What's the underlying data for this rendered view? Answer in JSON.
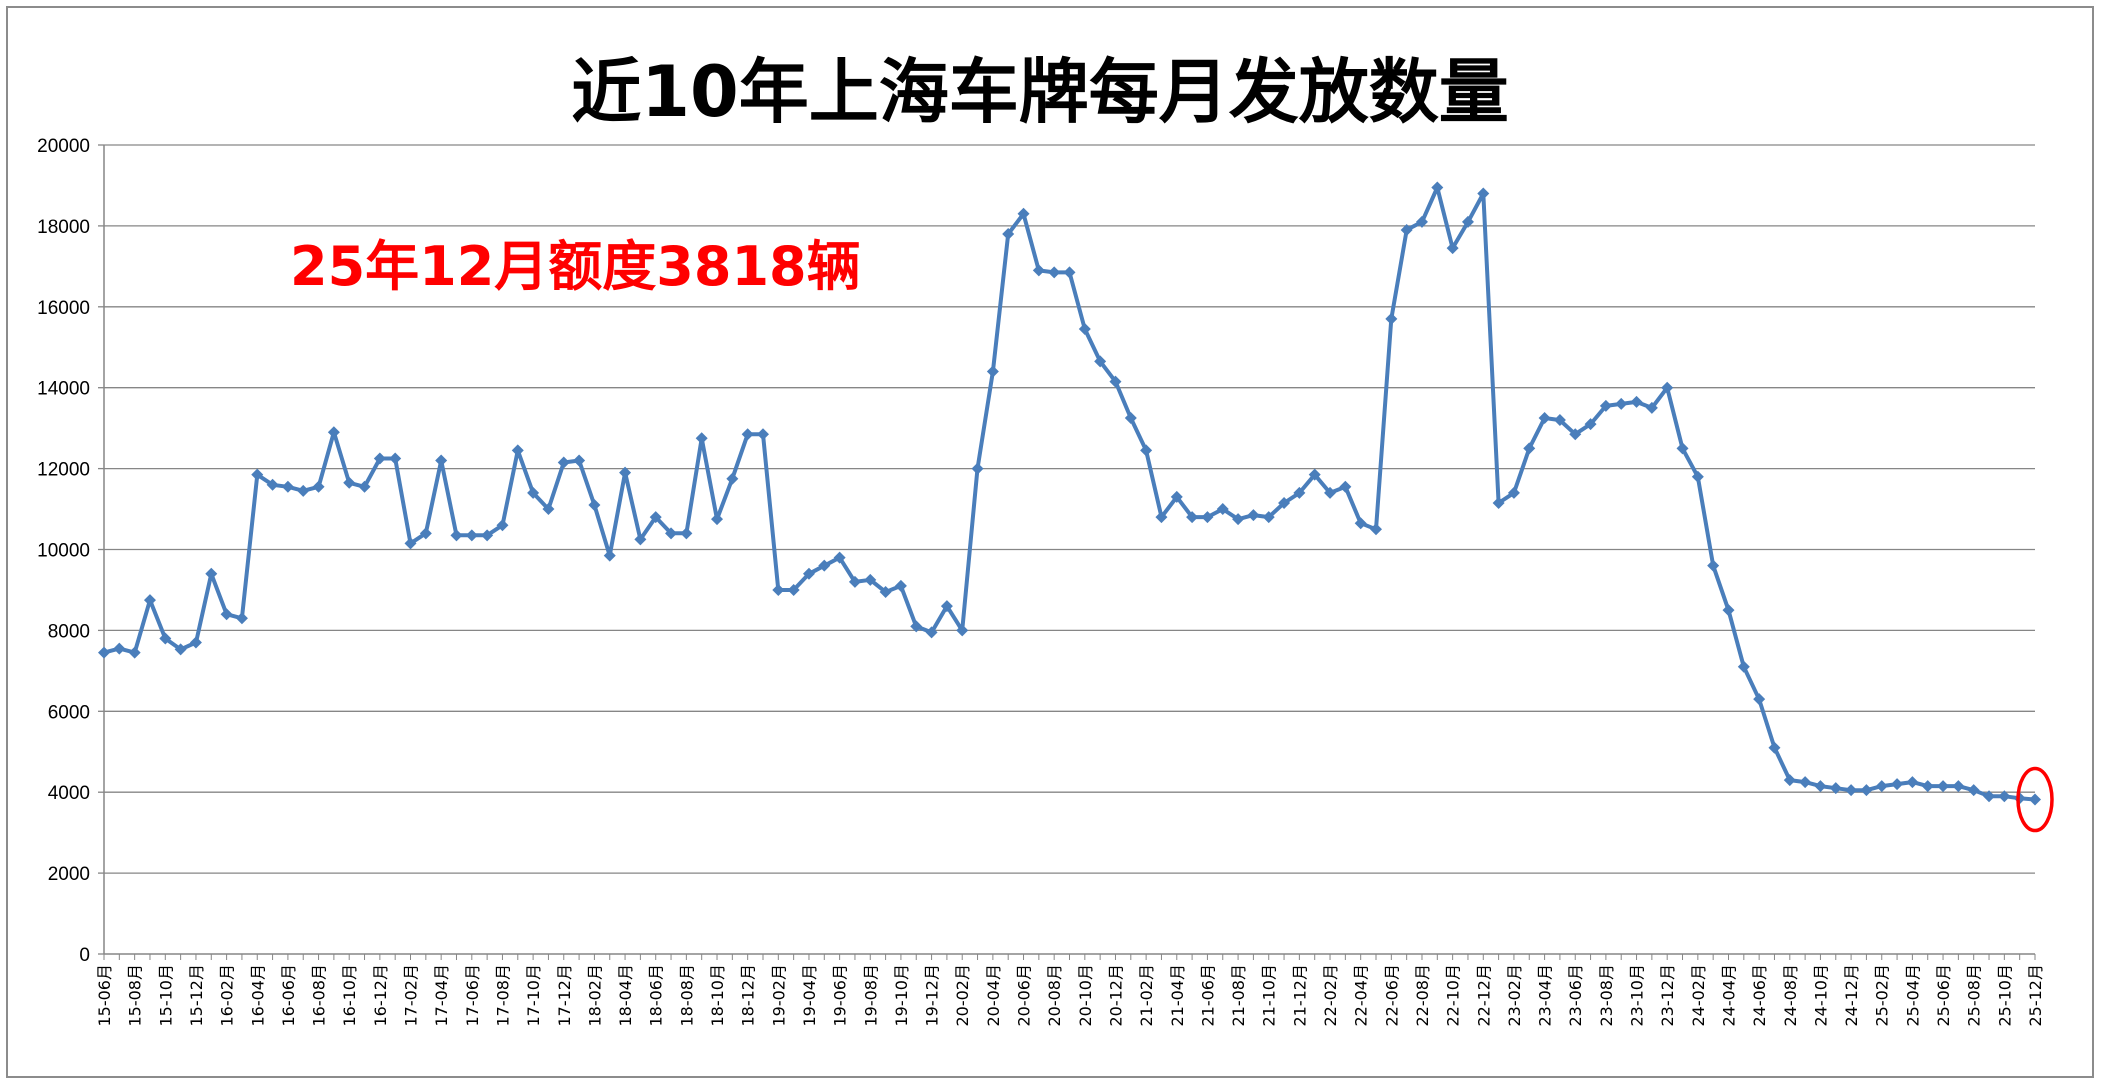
{
  "chart_data": {
    "type": "line",
    "title": "近10年上海车牌每月发放数量",
    "annotation": "25年12月额度3818辆",
    "xlabel": "",
    "ylabel": "",
    "ylim": [
      0,
      20000
    ],
    "yticks": [
      0,
      2000,
      4000,
      6000,
      8000,
      10000,
      12000,
      14000,
      16000,
      18000,
      20000
    ],
    "grid": true,
    "legend": "none",
    "highlight_last_point": true,
    "colors": {
      "line": "#4a7ebb",
      "annotation": "#ff0000",
      "grid": "#868686",
      "highlight_circle": "#ff0000"
    },
    "categories": [
      "15-06月",
      "15-07月",
      "15-08月",
      "15-09月",
      "15-10月",
      "15-11月",
      "15-12月",
      "16-01月",
      "16-02月",
      "16-03月",
      "16-04月",
      "16-05月",
      "16-06月",
      "16-07月",
      "16-08月",
      "16-09月",
      "16-10月",
      "16-11月",
      "16-12月",
      "17-01月",
      "17-02月",
      "17-03月",
      "17-04月",
      "17-05月",
      "17-06月",
      "17-07月",
      "17-08月",
      "17-09月",
      "17-10月",
      "17-11月",
      "17-12月",
      "18-01月",
      "18-02月",
      "18-03月",
      "18-04月",
      "18-05月",
      "18-06月",
      "18-07月",
      "18-08月",
      "18-09月",
      "18-10月",
      "18-11月",
      "18-12月",
      "19-01月",
      "19-02月",
      "19-03月",
      "19-04月",
      "19-05月",
      "19-06月",
      "19-07月",
      "19-08月",
      "19-09月",
      "19-10月",
      "19-11月",
      "19-12月",
      "20-01月",
      "20-02月",
      "20-03月",
      "20-04月",
      "20-05月",
      "20-06月",
      "20-07月",
      "20-08月",
      "20-09月",
      "20-10月",
      "20-11月",
      "20-12月",
      "21-01月",
      "21-02月",
      "21-03月",
      "21-04月",
      "21-05月",
      "21-06月",
      "21-07月",
      "21-08月",
      "21-09月",
      "21-10月",
      "21-11月",
      "21-12月",
      "22-01月",
      "22-02月",
      "22-03月",
      "22-04月",
      "22-05月",
      "22-06月",
      "22-07月",
      "22-08月",
      "22-09月",
      "22-10月",
      "22-11月",
      "22-12月",
      "23-01月",
      "23-02月",
      "23-03月",
      "23-04月",
      "23-05月",
      "23-06月",
      "23-07月",
      "23-08月",
      "23-09月",
      "23-10月",
      "23-11月",
      "23-12月",
      "24-01月",
      "24-02月",
      "24-03月",
      "24-04月",
      "24-05月",
      "24-06月",
      "24-07月",
      "24-08月",
      "24-09月",
      "24-10月",
      "24-11月",
      "24-12月",
      "25-01月",
      "25-02月",
      "25-03月",
      "25-04月",
      "25-05月",
      "25-06月",
      "25-07月",
      "25-08月",
      "25-09月",
      "25-10月",
      "25-11月",
      "25-12月"
    ],
    "series": [
      {
        "values": [
          7450,
          7550,
          7450,
          8750,
          7800,
          7530,
          7700,
          9400,
          8400,
          8300,
          11850,
          11600,
          11550,
          11450,
          11550,
          12900,
          11650,
          11550,
          12250,
          12250,
          10150,
          10400,
          12200,
          10350,
          10350,
          10350,
          10600,
          12450,
          11400,
          11000,
          12150,
          12200,
          11100,
          9850,
          11900,
          10250,
          10800,
          10400,
          10400,
          12750,
          10750,
          11750,
          12850,
          12850,
          9000,
          9000,
          9400,
          9600,
          9800,
          9200,
          9250,
          8950,
          9100,
          8100,
          7950,
          8600,
          8000,
          12000,
          14400,
          17800,
          18300,
          16900,
          16850,
          16850,
          15450,
          14650,
          14150,
          13250,
          12450,
          10800,
          11300,
          10800,
          10800,
          11000,
          10750,
          10850,
          10800,
          11150,
          11400,
          11850,
          11400,
          11550,
          10650,
          10500,
          15700,
          17900,
          18100,
          18950,
          17450,
          18100,
          18800,
          11150,
          11400,
          12500,
          13250,
          13200,
          12850,
          13100,
          13550,
          13600,
          13650,
          13500,
          14000,
          12500,
          11800,
          9600,
          8500,
          7100,
          6300,
          5100,
          4300,
          4250,
          4150,
          4100,
          4050,
          4050,
          4150,
          4200,
          4250,
          4150,
          4150,
          4150,
          4050,
          3900,
          3900,
          3850,
          3818
        ]
      }
    ]
  }
}
